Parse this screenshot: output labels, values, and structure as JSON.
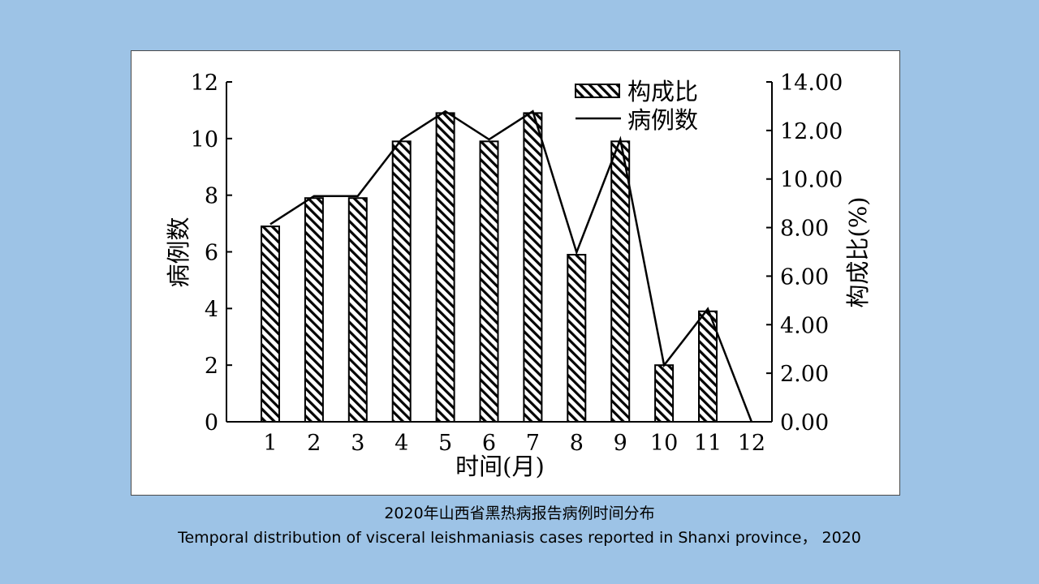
{
  "caption": {
    "zh": "2020年山西省黑热病报告病例时间分布",
    "en": "Temporal distribution of visceral leishmaniasis cases reported in Shanxi province，   2020"
  },
  "chart_data": {
    "type": "bar",
    "categories": [
      "1",
      "2",
      "3",
      "4",
      "5",
      "6",
      "7",
      "8",
      "9",
      "10",
      "11",
      "12"
    ],
    "series": [
      {
        "name": "构成比",
        "type": "bar",
        "axis": "left",
        "values": [
          6.9,
          7.9,
          7.9,
          9.9,
          10.9,
          9.9,
          10.9,
          5.9,
          9.9,
          2.0,
          3.9,
          0
        ]
      },
      {
        "name": "病例数",
        "type": "line",
        "axis": "right",
        "values": [
          8.14,
          9.3,
          9.3,
          11.63,
          12.79,
          11.63,
          12.79,
          6.98,
          11.63,
          2.33,
          4.65,
          0.0
        ]
      }
    ],
    "xlabel": "时间(月)",
    "ylabel_left": "病例数",
    "ylabel_right": "构成比(%)",
    "ylim_left": [
      0,
      12
    ],
    "yticks_left": [
      "0",
      "2",
      "4",
      "6",
      "8",
      "10",
      "12"
    ],
    "ylim_right": [
      0,
      14
    ],
    "yticks_right": [
      "0.00",
      "2.00",
      "4.00",
      "6.00",
      "8.00",
      "10.00",
      "12.00",
      "14.00"
    ],
    "legend_position": "top-right",
    "grid": false
  }
}
